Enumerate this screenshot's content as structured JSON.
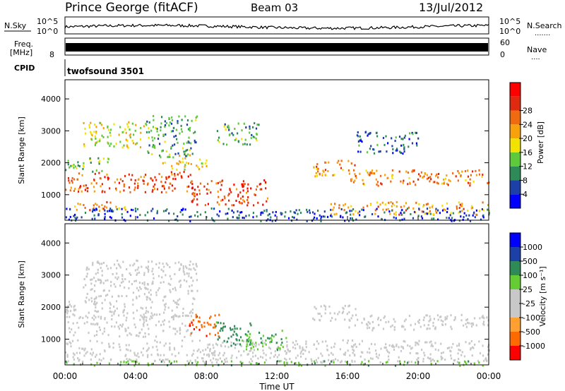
{
  "header": {
    "station": "Prince George (fitACF)",
    "beam": "Beam 03",
    "date": "13/Jul/2012"
  },
  "noise_panel": {
    "left_label": "N.Sky",
    "left_ticks": [
      "10^5",
      "10^0"
    ],
    "right_ticks": [
      "10^5",
      "10^0"
    ],
    "right_label": "N.Search",
    "right_dots": "......."
  },
  "freq_panel": {
    "left_label_1": "Freq.",
    "left_label_2": "[MHz]",
    "left_tick": "8",
    "right_ticks": [
      "60",
      "0"
    ],
    "right_label": "Nave",
    "right_dots": "...."
  },
  "cpid_panel": {
    "label": "CPID",
    "value": "twofsound 3501"
  },
  "colors": {
    "power": [
      "#0000ff",
      "#1c3fa8",
      "#2e8b57",
      "#5ec93a",
      "#f2e200",
      "#f7a20a",
      "#f06a10",
      "#e02a10",
      "#ff0000"
    ],
    "velocity": [
      "#ff0000",
      "#ff6a00",
      "#ffa030",
      "#c8c8c8",
      "#c8c8c8",
      "#66cc33",
      "#2e8b57",
      "#1c3fa8",
      "#0000ff"
    ],
    "ground_scatter": "#c8c8c8"
  },
  "chart_data": [
    {
      "type": "heatmap",
      "title": "Power",
      "xlabel": "Time UT",
      "ylabel": "Slant Range [km]",
      "x_ticks": [
        "00:00",
        "04:00",
        "08:00",
        "12:00",
        "16:00",
        "20:00",
        "00:00"
      ],
      "y_ticks": [
        1000,
        2000,
        3000,
        4000
      ],
      "ylim": [
        200,
        4600
      ],
      "colorbar": {
        "label": "Power [dB]",
        "ticks": [
          4,
          8,
          12,
          16,
          20,
          24,
          28
        ]
      },
      "regions": [
        {
          "t0": 0.0,
          "t1": 7.2,
          "r0": 1100,
          "r1": 1750,
          "level": 27
        },
        {
          "t0": 0.0,
          "t1": 2.5,
          "r0": 1750,
          "r1": 2200,
          "level": 14
        },
        {
          "t0": 7.0,
          "t1": 11.5,
          "r0": 700,
          "r1": 1500,
          "level": 29
        },
        {
          "t0": 5.5,
          "t1": 8.0,
          "r0": 1800,
          "r1": 2300,
          "level": 18
        },
        {
          "t0": 1.0,
          "t1": 4.5,
          "r0": 2500,
          "r1": 3300,
          "level": 18
        },
        {
          "t0": 4.5,
          "t1": 7.5,
          "r0": 2200,
          "r1": 3500,
          "level": 11
        },
        {
          "t0": 8.5,
          "t1": 11.0,
          "r0": 2600,
          "r1": 3300,
          "level": 12
        },
        {
          "t0": 14.0,
          "t1": 16.5,
          "r0": 1600,
          "r1": 2100,
          "level": 24
        },
        {
          "t0": 16.0,
          "t1": 24.0,
          "r0": 1300,
          "r1": 1800,
          "level": 25
        },
        {
          "t0": 15.0,
          "t1": 24.0,
          "r0": 400,
          "r1": 800,
          "level": 23
        },
        {
          "t0": 0.5,
          "t1": 3.5,
          "r0": 500,
          "r1": 800,
          "level": 23
        },
        {
          "t0": 16.5,
          "t1": 20.0,
          "r0": 2300,
          "r1": 3000,
          "level": 8
        },
        {
          "t0": 0.0,
          "t1": 24.0,
          "r0": 200,
          "r1": 600,
          "level": 6
        }
      ]
    },
    {
      "type": "heatmap",
      "title": "Velocity",
      "xlabel": "Time UT",
      "ylabel": "Slant Range [km]",
      "x_ticks": [
        "00:00",
        "04:00",
        "08:00",
        "12:00",
        "16:00",
        "20:00",
        "00:00"
      ],
      "y_ticks": [
        1000,
        2000,
        3000,
        4000
      ],
      "ylim": [
        200,
        4600
      ],
      "colorbar": {
        "label": "Velocity [m s⁻¹]",
        "ticks": [
          1000,
          500,
          100,
          25,
          -25,
          -100,
          -500,
          -1000
        ]
      },
      "regions": [
        {
          "t0": 0.0,
          "t1": 7.2,
          "r0": 1100,
          "r1": 2200,
          "level": 0
        },
        {
          "t0": 1.0,
          "t1": 7.5,
          "r0": 2200,
          "r1": 3500,
          "level": 0
        },
        {
          "t0": 16.0,
          "t1": 24.0,
          "r0": 1300,
          "r1": 1800,
          "level": 0
        },
        {
          "t0": 14.0,
          "t1": 16.5,
          "r0": 1600,
          "r1": 2100,
          "level": 0
        },
        {
          "t0": 0.0,
          "t1": 24.0,
          "r0": 300,
          "r1": 1000,
          "level": 0
        },
        {
          "t0": 7.0,
          "t1": 8.7,
          "r0": 1100,
          "r1": 1800,
          "level": -400
        },
        {
          "t0": 8.5,
          "t1": 10.5,
          "r0": 800,
          "r1": 1600,
          "level": 150
        },
        {
          "t0": 10.0,
          "t1": 12.5,
          "r0": 700,
          "r1": 1300,
          "level": 80
        },
        {
          "t0": 0.0,
          "t1": 24.0,
          "r0": 200,
          "r1": 350,
          "level": 80
        }
      ]
    }
  ]
}
